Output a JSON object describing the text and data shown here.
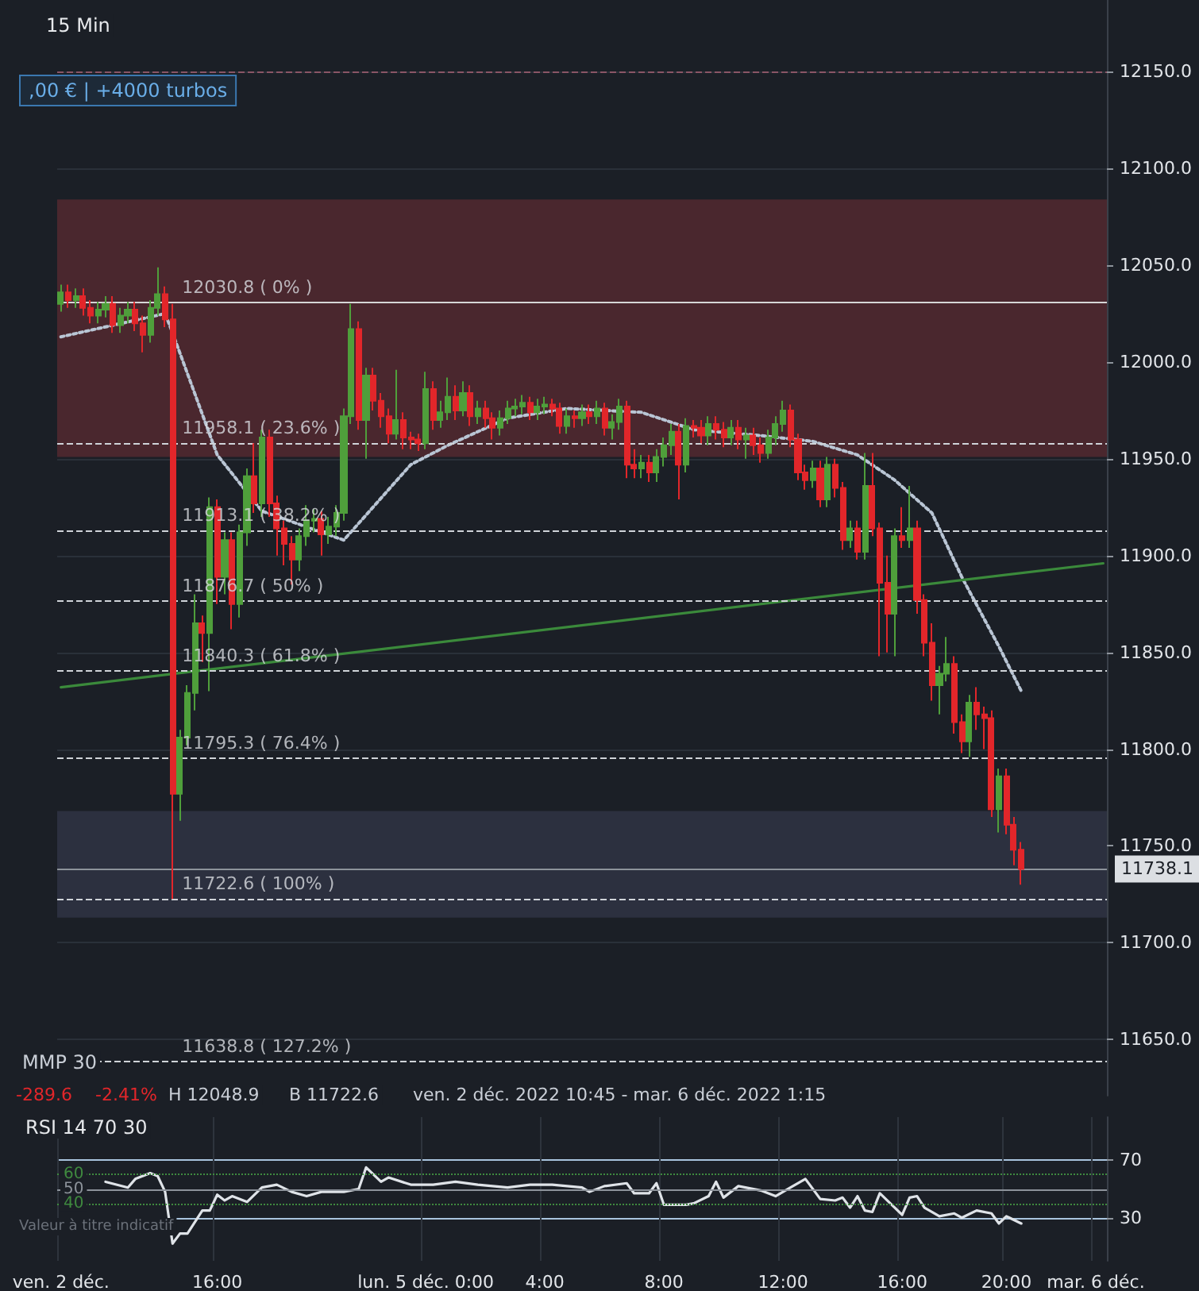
{
  "chart_data": [
    {
      "type": "candlestick",
      "colors": [
        "#4f9f3b",
        "#e2262a",
        "#4f9f3b",
        "#e2262a",
        "#e2262a",
        "#4f9f3b",
        "#4f9f3b",
        "#e2262a",
        "#4f9f3b",
        "#4f9f3b",
        "#e2262a",
        "#e2262a",
        "#4f9f3b",
        "#4f9f3b",
        "#e2262a",
        "#e2262a",
        "#4f9f3b",
        "#4f9f3b",
        "#4f9f3b",
        "#e2262a",
        "#4f9f3b",
        "#e2262a",
        "#4f9f3b",
        "#e2262a",
        "#4f9f3b",
        "#4f9f3b",
        "#e2262a",
        "#4f9f3b",
        "#e2262a",
        "#e2262a",
        "#e2262a",
        "#e2262a",
        "#4f9f3b",
        "#4f9f3b",
        "#4f9f3b",
        "#e2262a",
        "#4f9f3b",
        "#4f9f3b",
        "#4f9f3b",
        "#4f9f3b",
        "#e2262a",
        "#4f9f3b",
        "#e2262a",
        "#e2262a",
        "#e2262a",
        "#4f9f3b",
        "#e2262a",
        "#e2262a",
        "#e2262a",
        "#4f9f3b",
        "#e2262a",
        "#4f9f3b",
        "#4f9f3b",
        "#e2262a",
        "#4f9f3b",
        "#e2262a",
        "#4f9f3b",
        "#e2262a",
        "#e2262a",
        "#4f9f3b",
        "#4f9f3b",
        "#4f9f3b",
        "#4f9f3b",
        "#e2262a",
        "#4f9f3b",
        "#4f9f3b",
        "#e2262a",
        "#e2262a",
        "#4f9f3b",
        "#e2262a",
        "#4f9f3b",
        "#e2262a",
        "#4f9f3b",
        "#e2262a",
        "#4f9f3b",
        "#4f9f3b",
        "#e2262a",
        "#e2262a",
        "#4f9f3b",
        "#e2262a",
        "#4f9f3b",
        "#4f9f3b",
        "#4f9f3b",
        "#e2262a",
        "#4f9f3b",
        "#e2262a",
        "#e2262a",
        "#4f9f3b",
        "#e2262a",
        "#e2262a",
        "#4f9f3b",
        "#e2262a",
        "#4f9f3b",
        "#e2262a",
        "#e2262a",
        "#4f9f3b",
        "#4f9f3b",
        "#4f9f3b",
        "#e2262a",
        "#e2262a",
        "#e2262a",
        "#4f9f3b",
        "#e2262a",
        "#4f9f3b",
        "#e2262a",
        "#e2262a",
        "#4f9f3b",
        "#e2262a",
        "#4f9f3b",
        "#e2262a",
        "#e2262a",
        "#e2262a",
        "#4f9f3b",
        "#e2262a",
        "#4f9f3b",
        "#e2262a",
        "#e2262a",
        "#e2262a",
        "#4f9f3b",
        "#4f9f3b",
        "#e2262a",
        "#e2262a",
        "#4f9f3b",
        "#e2262a",
        "#e2262a",
        "#e2262a",
        "#4f9f3b",
        "#e2262a",
        "#e2262a",
        "#e2262a",
        null,
        null,
        null,
        null,
        null,
        null,
        null,
        null,
        null,
        null,
        null
      ],
      "marker": "none",
      "grid": "y",
      "tick_labels": "y",
      "categories": [
        null,
        null,
        null,
        null,
        null,
        null,
        null,
        null,
        null,
        null,
        null,
        null,
        null,
        null,
        null,
        null,
        null,
        null,
        null,
        null,
        null,
        null,
        null,
        null,
        null,
        null,
        null,
        null,
        null,
        null,
        null,
        null,
        null,
        null,
        null,
        null,
        null,
        null,
        null,
        null,
        null,
        null,
        null,
        null,
        null,
        null,
        null,
        null,
        null,
        null,
        null,
        null,
        null,
        null,
        null,
        null,
        null,
        null,
        null,
        null,
        null,
        null,
        null,
        null,
        null,
        null,
        null,
        null,
        null,
        null,
        null,
        null,
        null,
        null,
        null,
        null,
        null,
        null,
        null,
        null,
        null,
        null,
        null,
        null,
        null,
        null,
        null,
        null,
        null,
        null,
        null,
        null,
        null,
        null,
        null,
        null,
        null,
        null,
        null,
        null,
        null,
        null,
        null,
        null,
        null,
        null,
        null,
        null,
        null,
        null,
        null,
        null,
        null,
        null,
        null,
        null,
        null,
        null,
        null,
        null,
        null,
        null,
        null,
        null,
        null,
        null,
        null,
        null,
        null,
        null,
        null,
        null,
        null,
        null,
        null,
        null,
        null,
        null,
        null,
        null,
        null
      ],
      "ohlc": [
        [
          12030,
          12040,
          12026,
          12036
        ],
        [
          12036,
          12040,
          12028,
          12032
        ],
        [
          12032,
          12038,
          12028,
          12034
        ],
        [
          12034,
          12038,
          12024,
          12028
        ],
        [
          12028,
          12032,
          12020,
          12024
        ],
        [
          12024,
          12031,
          12020,
          12027
        ],
        [
          12027,
          12034,
          12023,
          12030
        ],
        [
          12030,
          12034,
          12015,
          12019
        ],
        [
          12019,
          12028,
          12015,
          12024
        ],
        [
          12024,
          12031,
          12020,
          12027
        ],
        [
          12027,
          12031,
          12016,
          12020
        ],
        [
          12020,
          12024,
          12005,
          12014
        ],
        [
          12014,
          12032,
          12010,
          12028
        ],
        [
          12028,
          12048.9,
          12024,
          12035
        ],
        [
          12035,
          12039,
          12018,
          12022
        ],
        [
          12022,
          12030,
          11722.6,
          11777
        ],
        [
          11777,
          11810,
          11763,
          11806
        ],
        [
          11806,
          11833,
          11802,
          11829
        ],
        [
          11829,
          11880,
          11820,
          11865
        ],
        [
          11865,
          11869,
          11845,
          11860
        ],
        [
          11860,
          11930,
          11830,
          11925
        ],
        [
          11925,
          11929,
          11875,
          11889
        ],
        [
          11889,
          11912,
          11880,
          11908
        ],
        [
          11908,
          11912,
          11862,
          11875
        ],
        [
          11875,
          11916,
          11868,
          11912
        ],
        [
          11912,
          11945,
          11905,
          11941
        ],
        [
          11941,
          11958,
          11922,
          11927
        ],
        [
          11927,
          11965,
          11920,
          11961
        ],
        [
          11961,
          11965,
          11920,
          11927
        ],
        [
          11927,
          11931,
          11900,
          11914
        ],
        [
          11914,
          11918,
          11895,
          11906
        ],
        [
          11906,
          11910,
          11885,
          11898
        ],
        [
          11898,
          11914,
          11892,
          11910
        ],
        [
          11910,
          11926,
          11905,
          11918
        ],
        [
          11918,
          11924,
          11912,
          11919
        ],
        [
          11919,
          11923,
          11900,
          11911
        ],
        [
          11911,
          11920,
          11906,
          11915
        ],
        [
          11915,
          11926,
          11910,
          11922
        ],
        [
          11922,
          11976,
          11918,
          11972
        ],
        [
          11972,
          12030,
          11968,
          12017
        ],
        [
          12017,
          12021,
          11965,
          11970
        ],
        [
          11970,
          11997,
          11950,
          11993
        ],
        [
          11993,
          11997,
          11975,
          11980
        ],
        [
          11980,
          11984,
          11966,
          11972
        ],
        [
          11972,
          11976,
          11958,
          11963
        ],
        [
          11963,
          11996,
          11960,
          11970
        ],
        [
          11970,
          11974,
          11955,
          11961
        ],
        [
          11961,
          11964,
          11955,
          11960
        ],
        [
          11960,
          11963,
          11954,
          11958
        ],
        [
          11958,
          11995,
          11955,
          11986
        ],
        [
          11986,
          11990,
          11965,
          11970
        ],
        [
          11970,
          11980,
          11966,
          11974
        ],
        [
          11974,
          11992,
          11970,
          11982
        ],
        [
          11982,
          11988,
          11970,
          11975
        ],
        [
          11975,
          11990,
          11972,
          11984
        ],
        [
          11984,
          11988,
          11967,
          11972
        ],
        [
          11972,
          11980,
          11968,
          11976
        ],
        [
          11976,
          11980,
          11966,
          11971
        ],
        [
          11971,
          11974,
          11960,
          11966
        ],
        [
          11966,
          11975,
          11962,
          11971
        ],
        [
          11971,
          11980,
          11968,
          11976
        ],
        [
          11976,
          11981,
          11972,
          11977
        ],
        [
          11977,
          11983,
          11973,
          11979
        ],
        [
          11979,
          11982,
          11970,
          11974
        ],
        [
          11974,
          11981,
          11970,
          11977
        ],
        [
          11977,
          11982,
          11973,
          11978
        ],
        [
          11978,
          11981,
          11972,
          11976
        ],
        [
          11976,
          11979,
          11963,
          11967
        ],
        [
          11967,
          11976,
          11963,
          11972
        ],
        [
          11972,
          11975,
          11966,
          11971
        ],
        [
          11971,
          11978,
          11967,
          11974
        ],
        [
          11974,
          11978,
          11968,
          11972
        ],
        [
          11972,
          11980,
          11968,
          11976
        ],
        [
          11976,
          11979,
          11962,
          11966
        ],
        [
          11966,
          11973,
          11960,
          11969
        ],
        [
          11969,
          11981,
          11965,
          11977
        ],
        [
          11977,
          11980,
          11940,
          11947
        ],
        [
          11947,
          11955,
          11940,
          11945
        ],
        [
          11945,
          11952,
          11940,
          11948
        ],
        [
          11948,
          11952,
          11938,
          11943
        ],
        [
          11943,
          11955,
          11938,
          11951
        ],
        [
          11951,
          11961,
          11946,
          11957
        ],
        [
          11957,
          11968,
          11952,
          11964
        ],
        [
          11964,
          11968,
          11929,
          11947
        ],
        [
          11947,
          11971,
          11943,
          11967
        ],
        [
          11967,
          11970,
          11961,
          11966
        ],
        [
          11966,
          11970,
          11958,
          11962
        ],
        [
          11962,
          11972,
          11957,
          11968
        ],
        [
          11968,
          11972,
          11960,
          11965
        ],
        [
          11965,
          11969,
          11956,
          11961
        ],
        [
          11961,
          11970,
          11957,
          11966
        ],
        [
          11966,
          11970,
          11955,
          11960
        ],
        [
          11960,
          11966,
          11950,
          11962
        ],
        [
          11962,
          11966,
          11952,
          11957
        ],
        [
          11957,
          11961,
          11948,
          11953
        ],
        [
          11953,
          11965,
          11950,
          11961
        ],
        [
          11961,
          11972,
          11957,
          11968
        ],
        [
          11968,
          11980,
          11964,
          11975
        ],
        [
          11975,
          11978,
          11956,
          11960
        ],
        [
          11960,
          11963,
          11939,
          11943
        ],
        [
          11943,
          11947,
          11934,
          11939
        ],
        [
          11939,
          11949,
          11935,
          11945
        ],
        [
          11945,
          11949,
          11925,
          11929
        ],
        [
          11929,
          11951,
          11925,
          11947
        ],
        [
          11947,
          11950,
          11930,
          11935
        ],
        [
          11935,
          11938,
          11903,
          11908
        ],
        [
          11908,
          11918,
          11904,
          11914
        ],
        [
          11914,
          11918,
          11898,
          11902
        ],
        [
          11902,
          11953,
          11898,
          11936
        ],
        [
          11936,
          11953,
          11910,
          11914
        ],
        [
          11914,
          11917,
          11848,
          11886
        ],
        [
          11886,
          11900,
          11850,
          11870
        ],
        [
          11870,
          11914,
          11848,
          11910
        ],
        [
          11910,
          11925,
          11904,
          11908
        ],
        [
          11908,
          11936,
          11904,
          11914
        ],
        [
          11914,
          11918,
          11870,
          11877
        ],
        [
          11877,
          11880,
          11848,
          11855
        ],
        [
          11855,
          11865,
          11825,
          11833
        ],
        [
          11833,
          11843,
          11818,
          11839
        ],
        [
          11839,
          11858,
          11835,
          11844
        ],
        [
          11844,
          11848,
          11808,
          11814
        ],
        [
          11814,
          11818,
          11798,
          11804
        ],
        [
          11804,
          11828,
          11796,
          11824
        ],
        [
          11824,
          11832,
          11810,
          11818
        ],
        [
          11818,
          11822,
          11800,
          11816
        ],
        [
          11816,
          11820,
          11765,
          11769
        ],
        [
          11769,
          11790,
          11757,
          11786
        ],
        [
          11786,
          11790,
          11756,
          11761
        ],
        [
          11761,
          11765,
          11740,
          11748
        ],
        [
          11748,
          11752,
          11730,
          11738.1
        ],
        null,
        null,
        null,
        null,
        null,
        null,
        null,
        null,
        null,
        null,
        null
      ],
      "series": [
        {
          "type": "line",
          "color": "#b9c5d4",
          "line_style": "dotted",
          "values": [
            12013,
            null,
            null,
            null,
            null,
            null,
            null,
            12019,
            null,
            null,
            null,
            null,
            null,
            null,
            12025,
            12015,
            null,
            null,
            null,
            null,
            null,
            11952,
            null,
            null,
            null,
            null,
            null,
            11923,
            null,
            null,
            null,
            null,
            null,
            null,
            null,
            null,
            null,
            null,
            11908,
            null,
            null,
            null,
            null,
            null,
            null,
            null,
            null,
            11947,
            null,
            null,
            null,
            null,
            11957,
            null,
            null,
            null,
            null,
            null,
            null,
            null,
            11971,
            null,
            null,
            null,
            null,
            null,
            null,
            null,
            11976,
            null,
            null,
            null,
            null,
            null,
            null,
            null,
            null,
            null,
            11974,
            null,
            null,
            null,
            null,
            null,
            null,
            11965,
            null,
            null,
            null,
            null,
            null,
            null,
            null,
            null,
            11962,
            null,
            null,
            null,
            null,
            null,
            null,
            11959,
            null,
            null,
            null,
            null,
            null,
            11952,
            null,
            null,
            null,
            null,
            11939,
            null,
            null,
            null,
            null,
            11922,
            null,
            null,
            null,
            11889,
            null,
            null,
            null,
            null,
            11853,
            null,
            null,
            11830,
            null,
            null,
            null,
            null,
            null,
            null,
            null,
            null,
            null,
            null,
            null
          ]
        },
        {
          "type": "line",
          "color": "#3b8a3b",
          "line_style": "solid",
          "values": [
            11832,
            null,
            null,
            null,
            null,
            null,
            null,
            null,
            null,
            null,
            null,
            null,
            null,
            null,
            null,
            null,
            null,
            null,
            null,
            null,
            null,
            null,
            null,
            null,
            null,
            null,
            null,
            null,
            null,
            null,
            null,
            null,
            null,
            null,
            null,
            null,
            null,
            null,
            null,
            null,
            null,
            null,
            null,
            null,
            null,
            null,
            null,
            null,
            null,
            null,
            null,
            null,
            null,
            null,
            null,
            null,
            null,
            null,
            null,
            null,
            null,
            null,
            null,
            null,
            null,
            null,
            null,
            null,
            null,
            null,
            null,
            null,
            null,
            null,
            null,
            null,
            null,
            null,
            null,
            null,
            null,
            null,
            null,
            null,
            null,
            null,
            null,
            null,
            null,
            null,
            null,
            null,
            null,
            null,
            null,
            null,
            null,
            null,
            null,
            null,
            null,
            null,
            null,
            null,
            null,
            null,
            null,
            null,
            null,
            null,
            null,
            null,
            null,
            null,
            null,
            null,
            null,
            null,
            null,
            null,
            null,
            null,
            null,
            null,
            null,
            null,
            null,
            null,
            null,
            null,
            null,
            null,
            null,
            null,
            null,
            null,
            null,
            null,
            null,
            null,
            11896
          ]
        }
      ],
      "ylim": [
        11621,
        12187
      ],
      "yticks": [
        {
          "value": 11650,
          "label": "11650.0"
        },
        {
          "value": 11700,
          "label": "11700.0"
        },
        {
          "value": 11750,
          "label": "11750.0"
        },
        {
          "value": 11800,
          "label": "11800.0"
        },
        {
          "value": 11850,
          "label": "11850.0"
        },
        {
          "value": 11900,
          "label": "11900.0"
        },
        {
          "value": 11950,
          "label": "11950.0"
        },
        {
          "value": 12000,
          "label": "12000.0"
        },
        {
          "value": 12050,
          "label": "12050.0"
        },
        {
          "value": 12100,
          "label": "12100.0"
        },
        {
          "value": 12150,
          "label": "12150.0"
        }
      ],
      "bands": [
        {
          "axis": "y",
          "from": 11951,
          "to": 12084,
          "color": "#4a272e"
        },
        {
          "axis": "y",
          "from": 11713,
          "to": 11768,
          "color": "#2c303f"
        }
      ],
      "ref_lines": [
        {
          "axis": "y",
          "value": 12150,
          "color": "#8a5566",
          "line_style": "dashed"
        },
        {
          "axis": "y",
          "value": 12030.8,
          "color": "#d6d6d6",
          "line_style": "solid"
        },
        {
          "axis": "y",
          "value": 11958.1,
          "color": "#cfd3d8",
          "line_style": "dashed"
        },
        {
          "axis": "y",
          "value": 11913.1,
          "color": "#cfd3d8",
          "line_style": "dashed"
        },
        {
          "axis": "y",
          "value": 11876.7,
          "color": "#cfd3d8",
          "line_style": "dashed"
        },
        {
          "axis": "y",
          "value": 11840.3,
          "color": "#cfd3d8",
          "line_style": "dashed"
        },
        {
          "axis": "y",
          "value": 11795.3,
          "color": "#cfd3d8",
          "line_style": "dashed"
        },
        {
          "axis": "y",
          "value": 11722.6,
          "color": "#cfd3d8",
          "line_style": "dashed"
        },
        {
          "axis": "y",
          "value": 11638.8,
          "color": "#cfd3d8",
          "line_style": "dashed"
        },
        {
          "axis": "y",
          "value": 11738.1,
          "label": "11738.1",
          "color": "#8d939b",
          "line_style": "solid"
        }
      ],
      "annotations": [
        "15 Min",
        ",00 € | +4000 turbos",
        "MMP 30",
        "-289.6",
        "-2.41%",
        "H 12048.9",
        "B 11722.6",
        "ven. 2 déc. 2022 10:45 - mar. 6 déc. 2022 1:15",
        {
          "text": "12030.8 ( 0% )",
          "y": 12030.8
        },
        {
          "text": "11958.1 ( 23.6% )",
          "y": 11958.1
        },
        {
          "text": "11913.1 ( 38.2% )",
          "y": 11913.1
        },
        {
          "text": "11876.7 ( 50% )",
          "y": 11876.7
        },
        {
          "text": "11840.3 ( 61.8% )",
          "y": 11840.3
        },
        {
          "text": "11795.3 ( 76.4% )",
          "y": 11795.3
        },
        {
          "text": "11722.6 ( 100% )",
          "y": 11722.6
        },
        {
          "text": "11638.8 ( 127.2% )",
          "y": 11638.8
        }
      ]
    },
    {
      "type": "line",
      "marker": "none",
      "grid": true,
      "categories": [
        "ven. 2 déc.",
        null,
        null,
        null,
        null,
        null,
        null,
        null,
        null,
        null,
        null,
        null,
        null,
        null,
        null,
        null,
        null,
        null,
        null,
        null,
        null,
        "16:00",
        null,
        null,
        null,
        null,
        null,
        null,
        null,
        null,
        null,
        null,
        null,
        null,
        null,
        null,
        null,
        null,
        null,
        null,
        null,
        null,
        null,
        null,
        null,
        null,
        null,
        null,
        null,
        "lun. 5 déc. 0:00",
        null,
        null,
        null,
        null,
        null,
        null,
        null,
        null,
        null,
        null,
        null,
        null,
        null,
        null,
        null,
        "4:00",
        null,
        null,
        null,
        null,
        null,
        null,
        null,
        null,
        null,
        null,
        null,
        null,
        null,
        null,
        null,
        "8:00",
        null,
        null,
        null,
        null,
        null,
        null,
        null,
        null,
        null,
        null,
        null,
        null,
        null,
        null,
        null,
        "12:00",
        null,
        null,
        null,
        null,
        null,
        null,
        null,
        null,
        null,
        null,
        null,
        null,
        null,
        null,
        null,
        "16:00",
        null,
        null,
        null,
        null,
        null,
        null,
        null,
        null,
        null,
        null,
        null,
        null,
        null,
        "20:00",
        null,
        null,
        null,
        null,
        null,
        null,
        null,
        null,
        null,
        null,
        null,
        "mar. 6 déc.",
        null
      ],
      "series": [
        {
          "color": "#dfe3e8",
          "values": [
            null,
            null,
            null,
            null,
            null,
            null,
            55,
            null,
            null,
            51,
            57,
            null,
            61,
            59,
            48,
            12,
            19,
            19,
            null,
            35,
            35,
            46,
            42,
            45,
            null,
            41,
            null,
            51,
            null,
            53,
            null,
            48,
            null,
            45,
            null,
            48,
            null,
            null,
            48,
            null,
            50,
            65,
            null,
            55,
            58,
            null,
            null,
            53,
            null,
            null,
            53,
            null,
            null,
            55,
            null,
            null,
            53,
            null,
            null,
            null,
            51,
            null,
            null,
            53,
            null,
            null,
            53,
            null,
            null,
            null,
            51,
            48,
            null,
            52,
            null,
            null,
            54,
            47,
            null,
            47,
            54,
            39,
            null,
            null,
            39,
            40,
            null,
            45,
            55,
            44,
            null,
            52,
            null,
            null,
            49,
            null,
            45,
            null,
            51,
            null,
            57,
            null,
            43,
            null,
            42,
            44,
            37,
            45,
            35,
            34,
            47,
            null,
            null,
            32,
            44,
            45,
            37,
            null,
            31,
            null,
            33,
            30,
            null,
            35,
            null,
            33,
            26,
            31,
            null,
            26,
            null,
            null,
            null,
            null,
            null,
            null,
            null,
            null,
            null,
            null,
            null
          ]
        }
      ],
      "ylim": [
        0,
        100
      ],
      "yticks": [
        70,
        30
      ],
      "ref_lines": [
        {
          "axis": "y",
          "value": 60,
          "label": "60",
          "color": "#3f8a3f",
          "line_style": "dotted"
        },
        {
          "axis": "y",
          "value": 50,
          "label": "50",
          "color": "#8d939b",
          "line_style": "solid"
        },
        {
          "axis": "y",
          "value": 40,
          "label": "40",
          "color": "#3f8a3f",
          "line_style": "dotted"
        }
      ],
      "annotations": [
        "RSI 14 70 30",
        "Valeur à titre indicatif"
      ]
    }
  ]
}
